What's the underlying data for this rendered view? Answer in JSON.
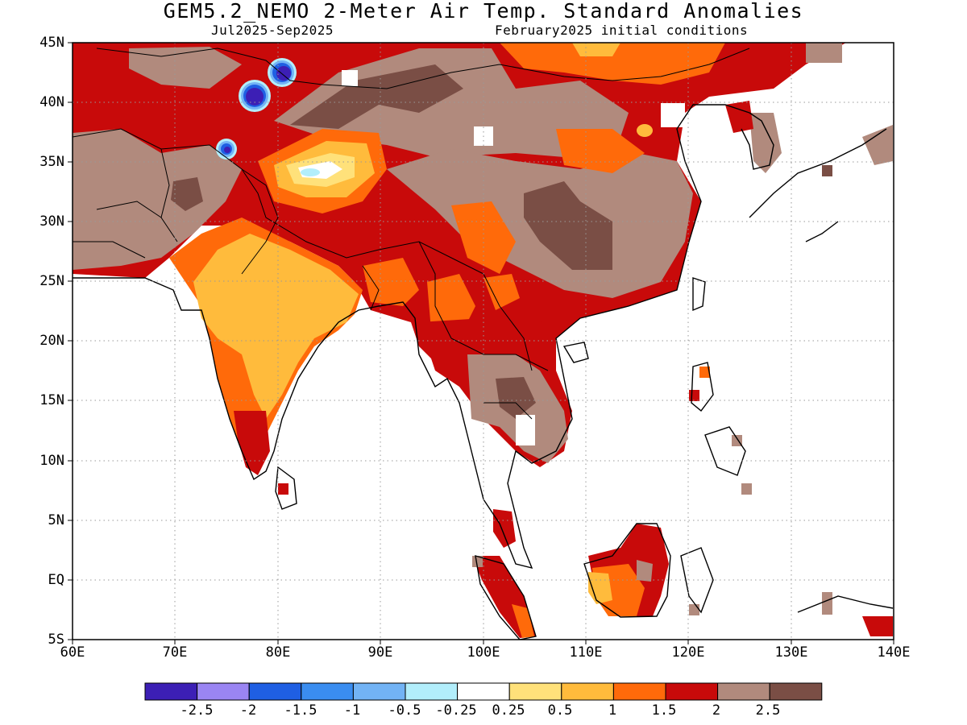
{
  "header": {
    "title": "GEM5.2_NEMO 2-Meter Air Temp. Standard Anomalies",
    "period": "Jul2025-Sep2025",
    "initial_conditions": "February2025 initial conditions"
  },
  "map": {
    "lon_range": [
      60,
      140
    ],
    "lat_range": [
      -5,
      45
    ],
    "lat_labels": [
      "45N",
      "40N",
      "35N",
      "30N",
      "25N",
      "20N",
      "15N",
      "10N",
      "5N",
      "EQ",
      "5S"
    ],
    "lon_labels": [
      "60E",
      "70E",
      "80E",
      "90E",
      "100E",
      "110E",
      "120E",
      "130E",
      "140E"
    ],
    "grid": "dotted, every 10° longitude and 5° latitude",
    "regions": [
      {
        "name": "Central Asia / NW India",
        "level": "1.5 to >2.5"
      },
      {
        "name": "India",
        "level": "0.5 to 1.5"
      },
      {
        "name": "Tibetan Plateau",
        "level": "0.25 to 1"
      },
      {
        "name": "China",
        "level": "2 to >2.5"
      },
      {
        "name": "Indochina",
        "level": "1.5 to >2.5"
      },
      {
        "name": "Borneo",
        "level": "0.5 to 2.5"
      },
      {
        "name": "Sumatra",
        "level": "1 to 2.5"
      },
      {
        "name": "Tian Shan spots",
        "level": "-2.5 to -1"
      }
    ]
  },
  "colorbar": {
    "colors": [
      "#3c1fb5",
      "#9a85f3",
      "#1f5fe3",
      "#3a8df0",
      "#72b3f5",
      "#b2eefb",
      "#ffffff",
      "#ffe17a",
      "#ffbb3c",
      "#ff6a0a",
      "#c80a0a",
      "#b18a7d",
      "#7a4e45"
    ],
    "labels": [
      "-2.5",
      "-2",
      "-1.5",
      "-1",
      "-0.5",
      "-0.25",
      "0.25",
      "0.5",
      "1",
      "1.5",
      "2",
      "2.5"
    ]
  },
  "colors": {
    "land_mask_no_data": "#ffffff",
    "coast": "#000000",
    "gridlines": "#999999"
  }
}
